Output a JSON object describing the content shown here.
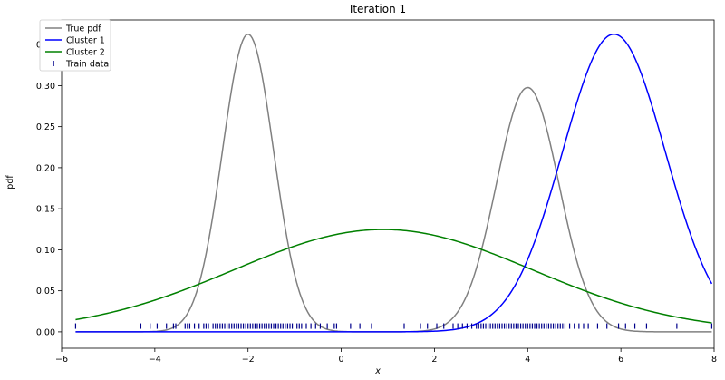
{
  "chart_data": {
    "type": "line",
    "title": "Iteration 1",
    "xlabel": "x",
    "ylabel": "pdf",
    "xlim": [
      -6.0,
      8.0
    ],
    "ylim": [
      -0.02,
      0.38
    ],
    "x_ticks": [
      -6,
      -4,
      -2,
      0,
      2,
      4,
      6,
      8
    ],
    "x_tick_labels": [
      "−6",
      "−4",
      "−2",
      "0",
      "2",
      "4",
      "6",
      "8"
    ],
    "y_ticks": [
      0.0,
      0.05,
      0.1,
      0.15,
      0.2,
      0.25,
      0.3,
      0.35
    ],
    "y_tick_labels": [
      "0.00",
      "0.05",
      "0.10",
      "0.15",
      "0.20",
      "0.25",
      "0.30",
      "0.35"
    ],
    "grid": false,
    "legend_position": "top-left",
    "x_range": [
      -5.7,
      7.95
    ],
    "series": [
      {
        "name": "True pdf",
        "color": "#808080",
        "mixture": [
          {
            "weight": 0.5,
            "mean": -2.0,
            "std": 0.55
          },
          {
            "weight": 0.5,
            "mean": 4.0,
            "std": 0.67
          }
        ]
      },
      {
        "name": "Cluster 1",
        "color": "#0000ff",
        "mixture": [
          {
            "weight": 1.0,
            "mean": 5.85,
            "std": 1.1
          }
        ]
      },
      {
        "name": "Cluster 2",
        "color": "#008000",
        "mixture": [
          {
            "weight": 1.0,
            "mean": 0.9,
            "std": 3.2
          }
        ]
      }
    ],
    "train_data": {
      "name": "Train data",
      "color": "#00008b",
      "y": 0.007,
      "x": [
        -5.7,
        -4.3,
        -4.1,
        -3.95,
        -3.75,
        -3.6,
        -3.55,
        -3.35,
        -3.3,
        -3.25,
        -3.15,
        -3.05,
        -2.95,
        -2.9,
        -2.85,
        -2.75,
        -2.7,
        -2.65,
        -2.6,
        -2.55,
        -2.5,
        -2.45,
        -2.4,
        -2.35,
        -2.3,
        -2.25,
        -2.2,
        -2.15,
        -2.1,
        -2.05,
        -2.0,
        -1.95,
        -1.9,
        -1.85,
        -1.8,
        -1.75,
        -1.7,
        -1.65,
        -1.6,
        -1.55,
        -1.5,
        -1.45,
        -1.4,
        -1.35,
        -1.3,
        -1.25,
        -1.2,
        -1.15,
        -1.1,
        -1.05,
        -0.95,
        -0.9,
        -0.85,
        -0.75,
        -0.65,
        -0.55,
        -0.45,
        -0.3,
        -0.15,
        -0.1,
        0.2,
        0.4,
        0.65,
        1.35,
        1.7,
        1.85,
        2.05,
        2.2,
        2.4,
        2.5,
        2.6,
        2.7,
        2.8,
        2.9,
        2.95,
        3.0,
        3.05,
        3.1,
        3.15,
        3.2,
        3.25,
        3.3,
        3.35,
        3.4,
        3.45,
        3.5,
        3.55,
        3.6,
        3.65,
        3.7,
        3.75,
        3.8,
        3.85,
        3.9,
        3.95,
        4.0,
        4.05,
        4.1,
        4.15,
        4.2,
        4.25,
        4.3,
        4.35,
        4.4,
        4.45,
        4.5,
        4.55,
        4.6,
        4.65,
        4.7,
        4.75,
        4.8,
        4.9,
        5.0,
        5.1,
        5.2,
        5.3,
        5.5,
        5.7,
        5.95,
        6.1,
        6.3,
        6.55,
        7.2,
        7.95
      ]
    }
  }
}
